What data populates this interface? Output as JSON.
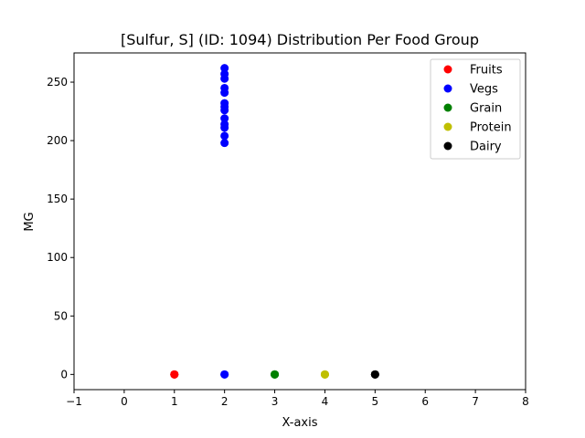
{
  "chart_data": {
    "type": "scatter",
    "title": "[Sulfur, S] (ID: 1094) Distribution Per Food Group",
    "xlabel": "X-axis",
    "ylabel": "MG",
    "xlim": [
      -1,
      8
    ],
    "ylim": [
      -13,
      275
    ],
    "xticks": [
      "−1",
      "0",
      "1",
      "2",
      "3",
      "4",
      "5",
      "6",
      "7",
      "8"
    ],
    "xtick_values": [
      -1,
      0,
      1,
      2,
      3,
      4,
      5,
      6,
      7,
      8
    ],
    "yticks": [
      "0",
      "50",
      "100",
      "150",
      "200",
      "250"
    ],
    "ytick_values": [
      0,
      50,
      100,
      150,
      200,
      250
    ],
    "grid": false,
    "legend_position": "top-right",
    "series": [
      {
        "name": "Fruits",
        "color": "#ff0000",
        "points": [
          [
            1,
            0
          ],
          [
            1,
            0
          ],
          [
            1,
            0
          ]
        ]
      },
      {
        "name": "Vegs",
        "color": "#0000ff",
        "points": [
          [
            2,
            0
          ],
          [
            2,
            0
          ],
          [
            2,
            198
          ],
          [
            2,
            204
          ],
          [
            2,
            211
          ],
          [
            2,
            214
          ],
          [
            2,
            219
          ],
          [
            2,
            226
          ],
          [
            2,
            229
          ],
          [
            2,
            232
          ],
          [
            2,
            241
          ],
          [
            2,
            245
          ],
          [
            2,
            253
          ],
          [
            2,
            257
          ],
          [
            2,
            262
          ]
        ]
      },
      {
        "name": "Grain",
        "color": "#008000",
        "points": [
          [
            3,
            0
          ],
          [
            3,
            0
          ],
          [
            3,
            0
          ]
        ]
      },
      {
        "name": "Protein",
        "color": "#bfbf00",
        "points": [
          [
            4,
            0
          ],
          [
            4,
            0
          ],
          [
            4,
            0
          ]
        ]
      },
      {
        "name": "Dairy",
        "color": "#000000",
        "points": [
          [
            5,
            0
          ],
          [
            5,
            0
          ],
          [
            5,
            0
          ]
        ]
      }
    ]
  }
}
